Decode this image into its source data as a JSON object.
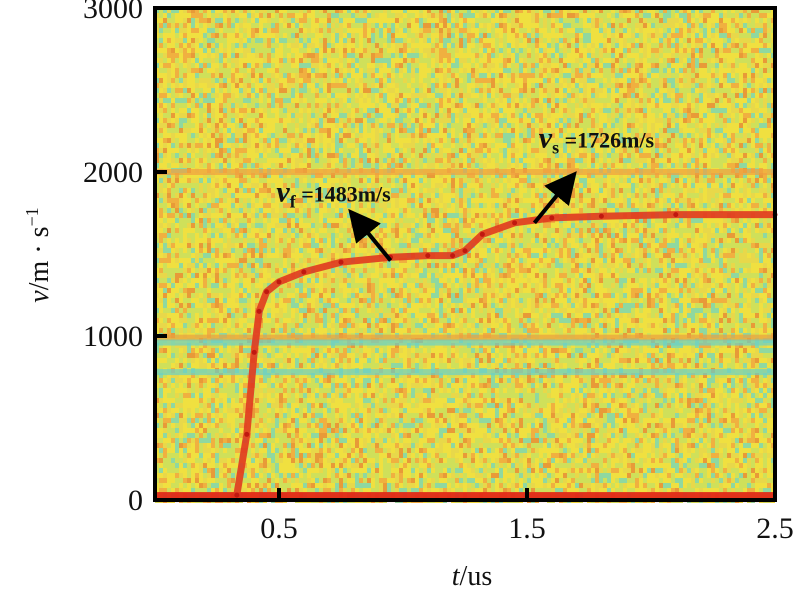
{
  "chart_data": {
    "type": "heatmap",
    "title": "",
    "xlabel_italic": "t",
    "xlabel_rest": "/us",
    "ylabel_italic": "v",
    "ylabel_rest": "/m · s",
    "ylabel_sup": "−1",
    "xlim": [
      0,
      2.5
    ],
    "ylim": [
      0,
      3000
    ],
    "x_ticks": [
      0.5,
      1.5,
      2.5
    ],
    "x_tick_labels": [
      "0.5",
      "1.5",
      "2.5"
    ],
    "y_ticks": [
      0,
      1000,
      2000,
      3000
    ],
    "y_tick_labels": [
      "0",
      "1000",
      "2000",
      "3000"
    ],
    "background_colors": [
      "#e8d84a",
      "#f0e040",
      "#cfe05a",
      "#8fd8a0",
      "#f0b040",
      "#e89a38"
    ],
    "horizontal_bands": [
      {
        "y": 2000,
        "color": "#f0a040"
      },
      {
        "y": 990,
        "color": "#e8a040"
      },
      {
        "y": 960,
        "color": "#6ad0c8"
      },
      {
        "y": 780,
        "color": "#6ad0c8"
      },
      {
        "y": 30,
        "color": "#e02818"
      }
    ],
    "series": [
      {
        "color": "#e03a20",
        "x": [
          0.33,
          0.37,
          0.4,
          0.42,
          0.45,
          0.5,
          0.6,
          0.75,
          0.95,
          1.1,
          1.2,
          1.25,
          1.32,
          1.45,
          1.6,
          1.8,
          2.1,
          2.5
        ],
        "y": [
          30,
          400,
          900,
          1150,
          1270,
          1330,
          1390,
          1450,
          1480,
          1490,
          1490,
          1520,
          1620,
          1690,
          1720,
          1730,
          1740,
          1740
        ]
      }
    ],
    "annotations": [
      {
        "symbol": "v",
        "sub": "f",
        "text": "=1483m/s",
        "x": 0.72,
        "y": 1820,
        "arrow_from": [
          0.95,
          1460
        ],
        "arrow_to": [
          0.82,
          1700
        ]
      },
      {
        "symbol": "v",
        "sub": "s",
        "text": "=1726m/s",
        "x": 1.78,
        "y": 2150,
        "arrow_from": [
          1.53,
          1690
        ],
        "arrow_to": [
          1.66,
          1930
        ]
      }
    ]
  }
}
